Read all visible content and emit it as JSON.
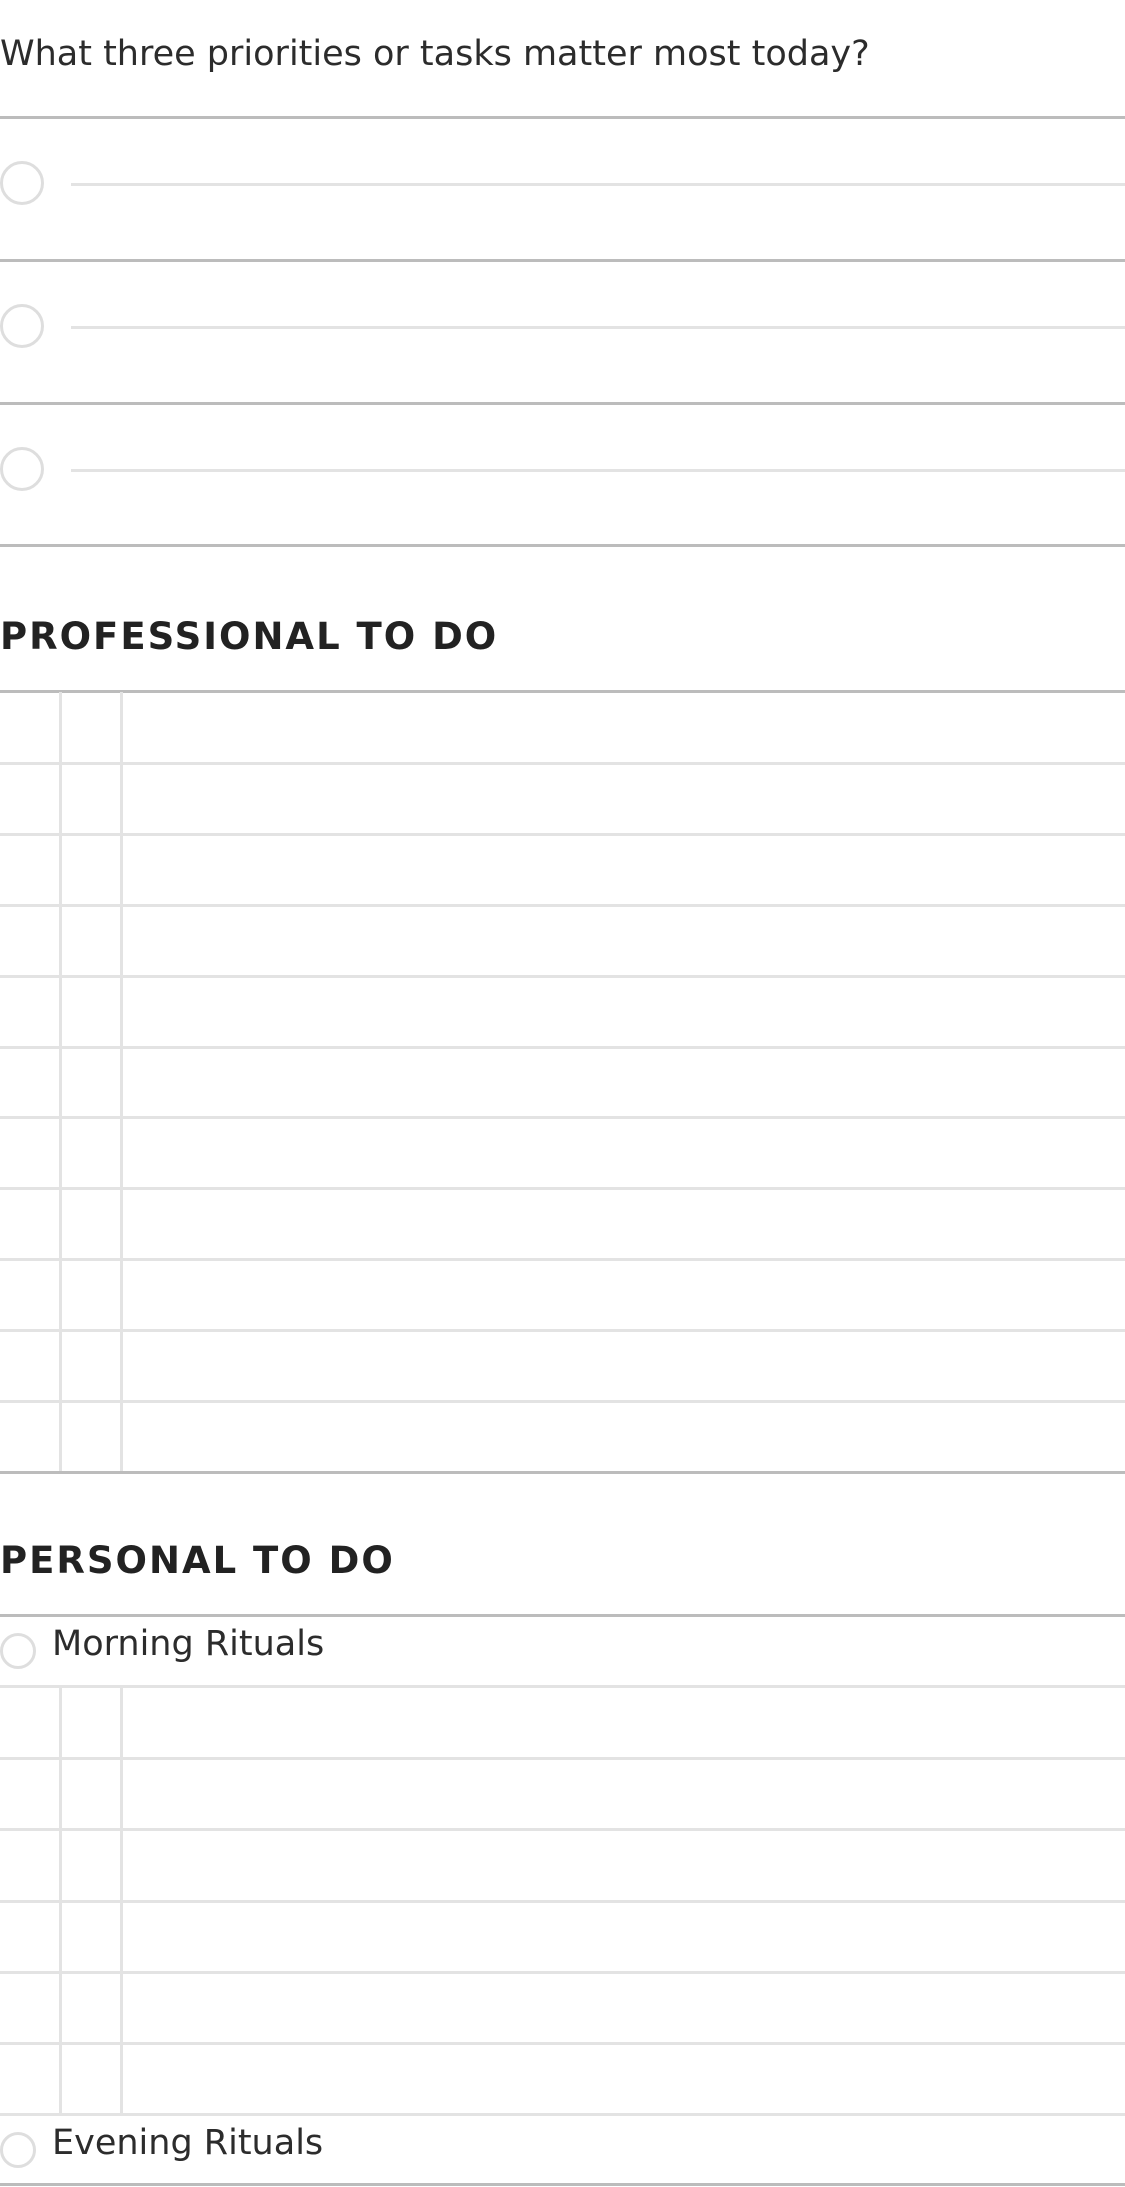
{
  "priorities": {
    "question": "What three priorities or tasks matter most today?",
    "items": [
      {
        "value": ""
      },
      {
        "value": ""
      },
      {
        "value": ""
      }
    ]
  },
  "professional": {
    "title": "PROFESSIONAL TO DO",
    "row_count": 11
  },
  "personal": {
    "title": "PERSONAL TO DO",
    "morning_label": "Morning Rituals",
    "morning_row_count": 6,
    "evening_label": "Evening Rituals"
  },
  "colors": {
    "divider": "#bcbcbc",
    "rule": "#e3e3e3",
    "text": "#262626"
  }
}
